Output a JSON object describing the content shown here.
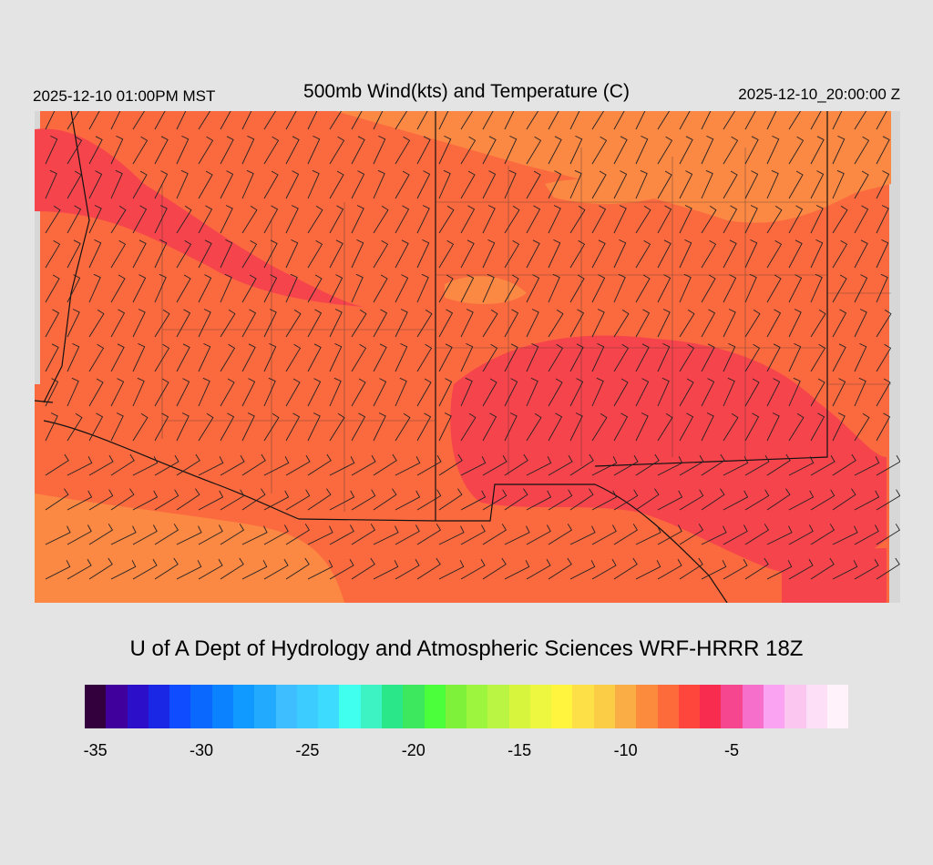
{
  "header": {
    "valid_time": "2025-12-10 01:00PM MST",
    "title": "500mb Wind(kts) and Temperature (C)",
    "init_time": "2025-12-10_20:00:00 Z"
  },
  "credit": "U of A Dept of Hydrology and Atmospheric Sciences WRF-HRRR 18Z",
  "colorbar": {
    "colors": [
      "#33003d",
      "#3f009c",
      "#2c10c9",
      "#1a28e6",
      "#0f4cff",
      "#0a68ff",
      "#0b82ff",
      "#1099ff",
      "#22aaff",
      "#3ebdff",
      "#3dccff",
      "#3ddcff",
      "#41ffee",
      "#3df2c3",
      "#2ae88a",
      "#3de85e",
      "#4bff3b",
      "#7ef23b",
      "#9ef53d",
      "#b9f542",
      "#d8f53d",
      "#eef73f",
      "#fff53e",
      "#fde048",
      "#fbcc46",
      "#fbad45",
      "#fd8b3e",
      "#fd6b3b",
      "#ff463c",
      "#f82c4e",
      "#f6468f",
      "#f66fcb",
      "#f9a3f2",
      "#fbc6ef",
      "#fde0f7",
      "#fff2fb"
    ],
    "tick_labels": [
      "-35",
      "-30",
      "-25",
      "-20",
      "-15",
      "-10",
      "-5"
    ]
  },
  "map": {
    "temp_colors": {
      "base": "#fb6a3f",
      "warm": "#fb8843",
      "cold": "#f6444c",
      "edge": "#d7d7d7"
    }
  }
}
